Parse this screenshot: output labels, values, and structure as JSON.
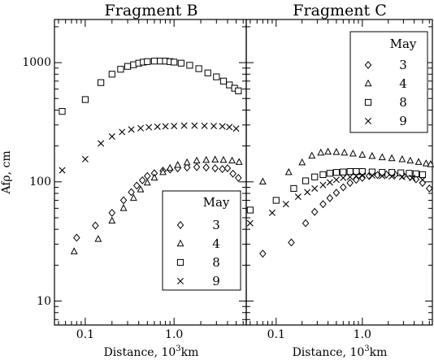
{
  "chart_data": [
    {
      "type": "scatter",
      "title": "Fragment B",
      "xlabel": "Distance, 10",
      "xlabel_sup": "3",
      "xlabel_unit": "km",
      "ylabel": "Afρ, cm",
      "xscale": "log",
      "yscale": "log",
      "xlim": [
        0.045,
        6.5
      ],
      "ylim": [
        6.3,
        2300
      ],
      "x_ticks": [
        "0.1",
        "1.0"
      ],
      "y_ticks": [
        "10",
        "100",
        "1000"
      ],
      "legend": {
        "title": "May",
        "placement": "bottom-right",
        "entries": [
          "3",
          "4",
          "8",
          "9"
        ]
      },
      "series": [
        {
          "name": "3",
          "marker": "diamond",
          "x": [
            0.08,
            0.13,
            0.2,
            0.27,
            0.33,
            0.38,
            0.44,
            0.5,
            0.6,
            0.75,
            0.9,
            1.1,
            1.4,
            1.8,
            2.3,
            2.9,
            3.5,
            4.0,
            4.6,
            5.3
          ],
          "y": [
            34,
            43,
            55,
            70,
            82,
            93,
            103,
            112,
            118,
            124,
            127,
            130,
            132,
            133,
            132,
            130,
            128,
            130,
            117,
            108
          ]
        },
        {
          "name": "4",
          "marker": "triangle",
          "x": [
            0.075,
            0.14,
            0.2,
            0.27,
            0.35,
            0.42,
            0.5,
            0.6,
            0.75,
            0.9,
            1.1,
            1.4,
            1.8,
            2.3,
            2.9,
            3.6,
            4.5,
            5.4
          ],
          "y": [
            26,
            33,
            47,
            60,
            73,
            86,
            98,
            108,
            120,
            130,
            138,
            145,
            150,
            152,
            153,
            152,
            150,
            146
          ]
        },
        {
          "name": "8",
          "marker": "square",
          "x": [
            0.055,
            0.1,
            0.15,
            0.2,
            0.25,
            0.3,
            0.35,
            0.4,
            0.45,
            0.5,
            0.6,
            0.7,
            0.8,
            0.9,
            1.0,
            1.2,
            1.5,
            1.9,
            2.4,
            3.0,
            3.6,
            4.2,
            4.8,
            5.3
          ],
          "y": [
            390,
            490,
            680,
            800,
            880,
            930,
            960,
            990,
            1010,
            1020,
            1030,
            1030,
            1030,
            1020,
            1010,
            990,
            950,
            890,
            820,
            760,
            700,
            650,
            610,
            580
          ]
        },
        {
          "name": "9",
          "marker": "cross",
          "x": [
            0.055,
            0.1,
            0.15,
            0.2,
            0.26,
            0.33,
            0.42,
            0.52,
            0.65,
            0.8,
            1.0,
            1.3,
            1.7,
            2.2,
            2.8,
            3.5,
            4.2,
            5.0
          ],
          "y": [
            125,
            155,
            210,
            240,
            262,
            275,
            282,
            287,
            290,
            292,
            294,
            296,
            296,
            295,
            294,
            292,
            288,
            280
          ]
        }
      ]
    },
    {
      "type": "scatter",
      "title": "Fragment C",
      "xlabel": "Distance, 10",
      "xlabel_sup": "3",
      "xlabel_unit": "km",
      "ylabel": "",
      "xscale": "log",
      "yscale": "log",
      "xlim": [
        0.045,
        6.5
      ],
      "ylim": [
        6.3,
        2300
      ],
      "x_ticks": [
        "0.1",
        "1.0"
      ],
      "y_ticks": [],
      "legend": {
        "title": "May",
        "placement": "top-right",
        "entries": [
          "3",
          "4",
          "8",
          "9"
        ]
      },
      "series": [
        {
          "name": "3",
          "marker": "diamond",
          "x": [
            0.07,
            0.15,
            0.22,
            0.28,
            0.35,
            0.42,
            0.5,
            0.6,
            0.72,
            0.85,
            1.0,
            1.2,
            1.5,
            1.9,
            2.4,
            3.0,
            3.6,
            4.2,
            5.0,
            6.0
          ],
          "y": [
            25,
            31,
            45,
            56,
            65,
            73,
            81,
            90,
            98,
            104,
            108,
            112,
            114,
            115,
            115,
            113,
            110,
            105,
            98,
            88
          ]
        },
        {
          "name": "4",
          "marker": "triangle",
          "x": [
            0.07,
            0.14,
            0.2,
            0.26,
            0.33,
            0.4,
            0.5,
            0.62,
            0.78,
            1.0,
            1.3,
            1.7,
            2.2,
            2.9,
            3.6,
            4.5,
            5.5,
            6.2
          ],
          "y": [
            100,
            120,
            145,
            165,
            175,
            178,
            177,
            175,
            172,
            168,
            164,
            160,
            157,
            154,
            150,
            146,
            142,
            140
          ]
        },
        {
          "name": "8",
          "marker": "square",
          "x": [
            0.05,
            0.1,
            0.16,
            0.22,
            0.28,
            0.35,
            0.42,
            0.5,
            0.6,
            0.72,
            0.85,
            1.0,
            1.3,
            1.7,
            2.2,
            2.8,
            3.5,
            4.2,
            5.0
          ],
          "y": [
            58,
            70,
            88,
            102,
            110,
            115,
            118,
            120,
            121,
            122,
            122,
            122,
            121,
            120,
            120,
            119,
            118,
            117,
            115
          ]
        },
        {
          "name": "9",
          "marker": "cross",
          "x": [
            0.05,
            0.09,
            0.13,
            0.18,
            0.23,
            0.28,
            0.35,
            0.42,
            0.5,
            0.6,
            0.72,
            0.85,
            1.0,
            1.3,
            1.7,
            2.2,
            2.9,
            3.8,
            5.0
          ],
          "y": [
            45,
            55,
            65,
            75,
            82,
            88,
            94,
            99,
            104,
            108,
            110,
            112,
            113,
            113,
            112,
            111,
            110,
            108,
            104
          ]
        }
      ]
    }
  ]
}
